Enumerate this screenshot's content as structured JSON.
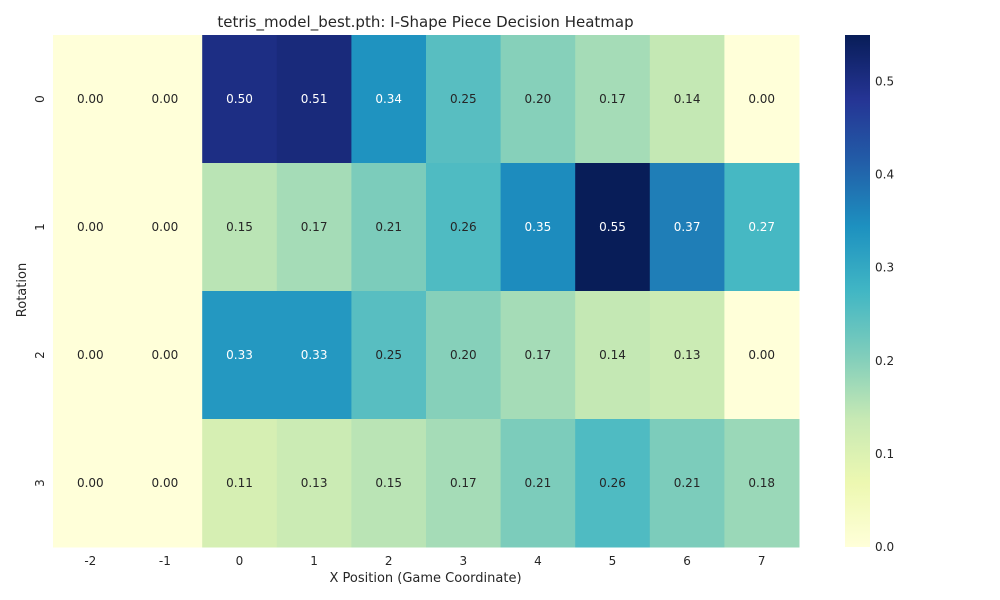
{
  "chart_data": {
    "type": "heatmap",
    "title": "tetris_model_best.pth: I-Shape Piece Decision Heatmap",
    "xlabel": "X Position (Game Coordinate)",
    "ylabel": "Rotation",
    "x_categories": [
      "-2",
      "-1",
      "0",
      "1",
      "2",
      "3",
      "4",
      "5",
      "6",
      "7"
    ],
    "y_categories": [
      "0",
      "1",
      "2",
      "3"
    ],
    "values": [
      [
        0.0,
        0.0,
        0.5,
        0.51,
        0.34,
        0.25,
        0.2,
        0.17,
        0.14,
        0.0
      ],
      [
        0.0,
        0.0,
        0.15,
        0.17,
        0.21,
        0.26,
        0.35,
        0.55,
        0.37,
        0.27
      ],
      [
        0.0,
        0.0,
        0.33,
        0.33,
        0.25,
        0.2,
        0.17,
        0.14,
        0.13,
        0.0
      ],
      [
        0.0,
        0.0,
        0.11,
        0.13,
        0.15,
        0.17,
        0.21,
        0.26,
        0.21,
        0.18
      ]
    ],
    "annotations": true,
    "value_format": "0.00",
    "colormap": "YlGnBu",
    "color_range": [
      0.0,
      0.55
    ],
    "colorbar": {
      "ticks": [
        "0.0",
        "0.1",
        "0.2",
        "0.3",
        "0.4",
        "0.5"
      ]
    },
    "grid": false
  }
}
